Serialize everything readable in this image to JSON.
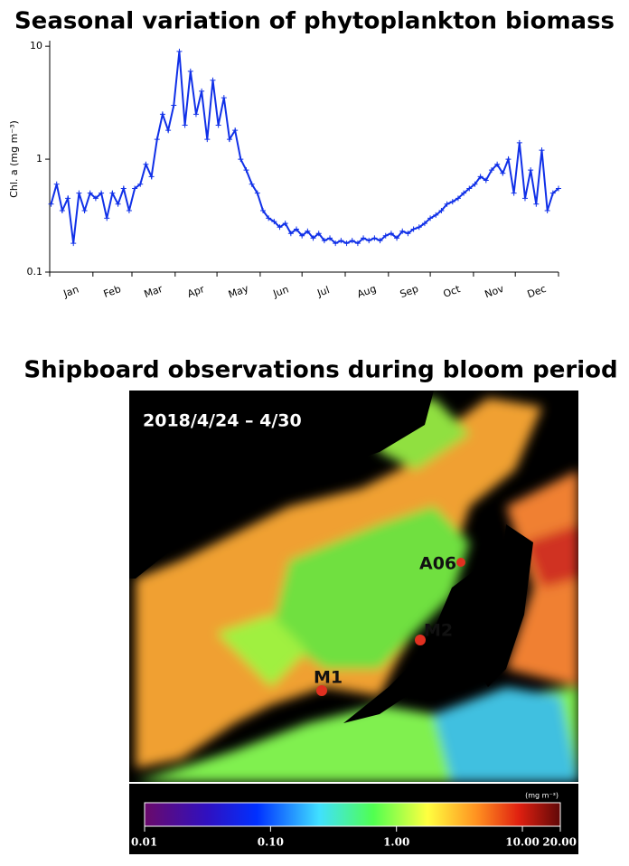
{
  "chart_data": [
    {
      "type": "line",
      "title": "Seasonal variation of phytoplankton biomass",
      "ylabel": "Chl. a (mg m⁻³)",
      "log_y": true,
      "ylim": [
        0.1,
        11.2
      ],
      "yticks": [
        0.1,
        1,
        10
      ],
      "xlim": [
        0,
        365
      ],
      "xticks": [
        0,
        31,
        59,
        90,
        120,
        151,
        181,
        212,
        243,
        273,
        304,
        334,
        365
      ],
      "categories": [
        "Jan",
        "Feb",
        "Mar",
        "Apr",
        "May",
        "Jun",
        "Jul",
        "Aug",
        "Sep",
        "Oct",
        "Nov",
        "Dec"
      ],
      "color": "#1030e8",
      "x": [
        1,
        5,
        9,
        13,
        17,
        21,
        25,
        29,
        33,
        37,
        41,
        45,
        49,
        53,
        57,
        61,
        65,
        69,
        73,
        77,
        81,
        85,
        89,
        93,
        97,
        101,
        105,
        109,
        113,
        117,
        121,
        125,
        129,
        133,
        137,
        141,
        145,
        149,
        153,
        157,
        161,
        165,
        169,
        173,
        177,
        181,
        185,
        189,
        193,
        197,
        201,
        205,
        209,
        213,
        217,
        221,
        225,
        229,
        233,
        237,
        241,
        245,
        249,
        253,
        257,
        261,
        265,
        269,
        273,
        277,
        281,
        285,
        289,
        293,
        297,
        301,
        305,
        309,
        313,
        317,
        321,
        325,
        329,
        333,
        337,
        341,
        345,
        349,
        353,
        357,
        361,
        365
      ],
      "values": [
        0.4,
        0.6,
        0.35,
        0.45,
        0.18,
        0.5,
        0.35,
        0.5,
        0.45,
        0.5,
        0.3,
        0.5,
        0.4,
        0.55,
        0.35,
        0.55,
        0.6,
        0.9,
        0.7,
        1.5,
        2.5,
        1.8,
        3,
        9,
        2,
        6,
        2.5,
        4,
        1.5,
        5,
        2,
        3.5,
        1.5,
        1.8,
        1,
        0.8,
        0.6,
        0.5,
        0.35,
        0.3,
        0.28,
        0.25,
        0.27,
        0.22,
        0.24,
        0.21,
        0.23,
        0.2,
        0.22,
        0.19,
        0.2,
        0.18,
        0.19,
        0.18,
        0.19,
        0.18,
        0.2,
        0.19,
        0.2,
        0.19,
        0.21,
        0.22,
        0.2,
        0.23,
        0.22,
        0.24,
        0.25,
        0.27,
        0.3,
        0.32,
        0.35,
        0.4,
        0.42,
        0.45,
        0.5,
        0.55,
        0.6,
        0.7,
        0.65,
        0.8,
        0.9,
        0.75,
        1.0,
        0.5,
        1.4,
        0.45,
        0.8,
        0.4,
        1.2,
        0.35,
        0.5,
        0.55
      ]
    },
    {
      "type": "map",
      "title": "Shipboard observations during bloom period",
      "period": "2018/4/24 – 4/30",
      "stations": [
        "A06",
        "M2",
        "M1"
      ],
      "colorbar_unit": "(mg m⁻³)",
      "colorbar_log": true,
      "colorbar_lim": [
        0.01,
        20
      ],
      "colorbar_ticks": [
        {
          "value": 0.01,
          "label": "0.01"
        },
        {
          "value": 0.1,
          "label": "0.10"
        },
        {
          "value": 1,
          "label": "1.00"
        },
        {
          "value": 10,
          "label": "10.00"
        },
        {
          "value": 20,
          "label": "20.00"
        }
      ]
    }
  ]
}
